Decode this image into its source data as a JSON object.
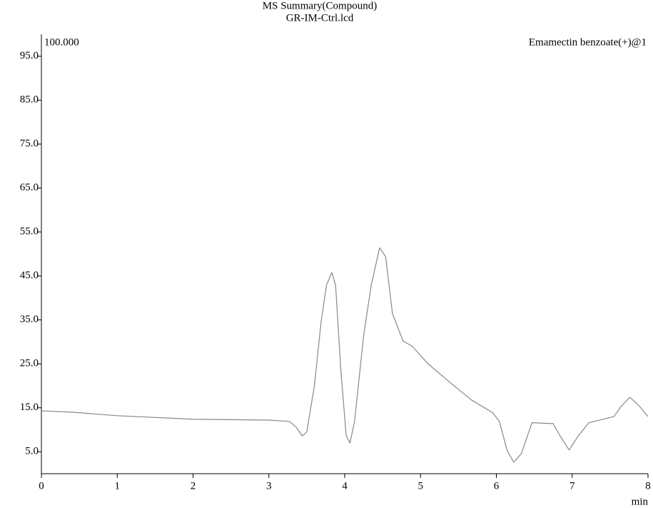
{
  "chart_data": {
    "type": "line",
    "title": "MS Summary(Compound)",
    "subtitle": "GR-IM-Ctrl.lcd",
    "corner_label": "100.000",
    "x_label": "min",
    "xlim": [
      0,
      8
    ],
    "xticks": [
      0,
      1,
      2,
      3,
      4,
      5,
      6,
      7,
      8
    ],
    "ylim": [
      0,
      100
    ],
    "yticks": [
      {
        "value": 5,
        "label": "5.0"
      },
      {
        "value": 15,
        "label": "15.0"
      },
      {
        "value": 25,
        "label": "25.0"
      },
      {
        "value": 35,
        "label": "35.0"
      },
      {
        "value": 45,
        "label": "45.0"
      },
      {
        "value": 55,
        "label": "55.0"
      },
      {
        "value": 65,
        "label": "65.0"
      },
      {
        "value": 75,
        "label": "75.0"
      },
      {
        "value": 85,
        "label": "85.0"
      },
      {
        "value": 95,
        "label": "95.0"
      }
    ],
    "x": [
      0,
      0.4,
      1.0,
      2.0,
      3.0,
      3.27,
      3.36,
      3.44,
      3.5,
      3.6,
      3.69,
      3.76,
      3.83,
      3.88,
      3.95,
      4.02,
      4.07,
      4.13,
      4.25,
      4.35,
      4.46,
      4.54,
      4.63,
      4.77,
      4.89,
      5.1,
      5.38,
      5.67,
      5.95,
      6.04,
      6.14,
      6.23,
      6.33,
      6.47,
      6.75,
      6.84,
      6.96,
      7.08,
      7.22,
      7.55,
      7.64,
      7.76,
      7.88,
      8.0
    ],
    "series": [
      {
        "name": "Emamectin benzoate(+)@1",
        "color": "#888888",
        "values": [
          14.3,
          14.0,
          13.2,
          12.4,
          12.2,
          11.9,
          10.6,
          8.6,
          9.5,
          20,
          34.7,
          42.9,
          45.8,
          42.9,
          23.3,
          8.6,
          7.0,
          11.9,
          31.5,
          42.9,
          51.4,
          49.4,
          36.4,
          30.2,
          29.0,
          25,
          20.9,
          16.8,
          13.9,
          11.9,
          5.4,
          2.6,
          4.6,
          11.6,
          11.4,
          8.6,
          5.4,
          8.6,
          11.6,
          13.0,
          15.2,
          17.4,
          15.5,
          13.0
        ]
      }
    ]
  }
}
